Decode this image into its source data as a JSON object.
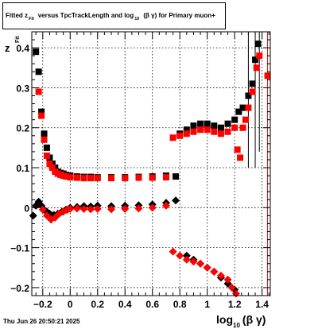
{
  "title": {
    "prefix": "Fitted  z",
    "sub": "Fit",
    "middle": "versus TpcTrackLength and log",
    "sub2": "10",
    "suffix": "(β  γ) for Primary muon+"
  },
  "timestamp": "Thu Jun 26 20:50:21 2025",
  "colors": {
    "series1": "#000000",
    "series2": "#ff0000",
    "grid": "#000000"
  },
  "chart_data": {
    "type": "scatter",
    "x_axis": {
      "label_main": "log",
      "label_sub": "10",
      "label_suffix": "(β γ)",
      "range": [
        -0.28,
        1.46
      ],
      "ticks": [
        -0.2,
        0,
        0.2,
        0.4,
        0.6,
        0.8,
        1,
        1.2,
        1.4
      ],
      "tick_labels": [
        "−0.2",
        "0",
        "0.2",
        "0.4",
        "0.6",
        "0.8",
        "1",
        "1.2",
        "1.4"
      ]
    },
    "y_axis": {
      "label_main": "z",
      "label_sub": "Fit",
      "range": [
        -0.22,
        0.44
      ],
      "ticks": [
        -0.2,
        -0.1,
        0,
        0.1,
        0.2,
        0.3,
        0.4
      ],
      "tick_labels": [
        "−0.2",
        "−0.1",
        "0",
        "0.1",
        "0.2",
        "0.3",
        "0.4"
      ]
    },
    "grid": true,
    "series": [
      {
        "color": "#000000",
        "marker": "square",
        "points": [
          [
            -0.25,
            0.39
          ],
          [
            -0.23,
            0.34
          ],
          [
            -0.21,
            0.24
          ],
          [
            -0.19,
            0.185
          ],
          [
            -0.17,
            0.15
          ],
          [
            -0.15,
            0.125
          ],
          [
            -0.13,
            0.11
          ],
          [
            -0.11,
            0.1
          ],
          [
            -0.09,
            0.09
          ],
          [
            -0.07,
            0.087
          ],
          [
            -0.05,
            0.085
          ],
          [
            -0.03,
            0.082
          ],
          [
            0.0,
            0.08
          ],
          [
            0.05,
            0.078
          ],
          [
            0.1,
            0.077
          ],
          [
            0.15,
            0.077
          ],
          [
            0.2,
            0.076
          ],
          [
            0.3,
            0.076
          ],
          [
            0.4,
            0.076
          ],
          [
            0.5,
            0.077
          ],
          [
            0.6,
            0.078
          ],
          [
            0.7,
            0.08
          ],
          [
            0.77,
            0.078
          ],
          [
            0.8,
            0.185
          ],
          [
            0.85,
            0.195
          ],
          [
            0.9,
            0.205
          ],
          [
            0.95,
            0.21
          ],
          [
            1.0,
            0.21
          ],
          [
            1.05,
            0.205
          ],
          [
            1.1,
            0.2
          ],
          [
            1.15,
            0.21
          ],
          [
            1.2,
            0.22
          ],
          [
            1.23,
            0.24
          ],
          [
            1.26,
            0.25
          ],
          [
            1.3,
            0.28
          ],
          [
            1.33,
            0.31
          ],
          [
            1.35,
            0.37
          ],
          [
            1.37,
            0.41
          ]
        ]
      },
      {
        "color": "#000000",
        "marker": "diamond",
        "points": [
          [
            -0.27,
            -0.02
          ],
          [
            -0.25,
            0.005
          ],
          [
            -0.23,
            0.015
          ],
          [
            -0.21,
            0.005
          ],
          [
            -0.19,
            -0.005
          ],
          [
            -0.17,
            -0.01
          ],
          [
            -0.15,
            -0.015
          ],
          [
            -0.12,
            -0.018
          ],
          [
            -0.09,
            -0.015
          ],
          [
            -0.06,
            -0.01
          ],
          [
            -0.03,
            -0.005
          ],
          [
            0.0,
            0.0
          ],
          [
            0.05,
            0.002
          ],
          [
            0.1,
            0.004
          ],
          [
            0.15,
            0.003
          ],
          [
            0.2,
            0.005
          ],
          [
            0.3,
            0.004
          ],
          [
            0.4,
            0.005
          ],
          [
            0.5,
            0.006
          ],
          [
            0.6,
            0.008
          ],
          [
            0.7,
            0.012
          ],
          [
            0.77,
            0.018
          ],
          [
            0.85,
            -0.12
          ],
          [
            0.9,
            -0.13
          ],
          [
            0.95,
            -0.14
          ],
          [
            1.0,
            -0.15
          ],
          [
            1.05,
            -0.16
          ],
          [
            1.1,
            -0.175
          ],
          [
            1.15,
            -0.19
          ],
          [
            1.2,
            -0.205
          ]
        ]
      },
      {
        "color": "#ff0000",
        "marker": "square",
        "points": [
          [
            -0.23,
            0.29
          ],
          [
            -0.21,
            0.23
          ],
          [
            -0.19,
            0.17
          ],
          [
            -0.17,
            0.13
          ],
          [
            -0.15,
            0.11
          ],
          [
            -0.13,
            0.1
          ],
          [
            -0.11,
            0.09
          ],
          [
            -0.09,
            0.085
          ],
          [
            -0.07,
            0.082
          ],
          [
            -0.05,
            0.08
          ],
          [
            -0.03,
            0.078
          ],
          [
            0.0,
            0.076
          ],
          [
            0.05,
            0.075
          ],
          [
            0.1,
            0.074
          ],
          [
            0.15,
            0.074
          ],
          [
            0.2,
            0.074
          ],
          [
            0.3,
            0.074
          ],
          [
            0.4,
            0.074
          ],
          [
            0.5,
            0.075
          ],
          [
            0.6,
            0.075
          ],
          [
            0.7,
            0.076
          ],
          [
            0.75,
            0.175
          ],
          [
            0.8,
            0.18
          ],
          [
            0.85,
            0.185
          ],
          [
            0.9,
            0.19
          ],
          [
            0.95,
            0.195
          ],
          [
            1.0,
            0.195
          ],
          [
            1.05,
            0.19
          ],
          [
            1.1,
            0.185
          ],
          [
            1.15,
            0.19
          ],
          [
            1.2,
            0.2
          ],
          [
            1.22,
            0.145
          ],
          [
            1.24,
            0.125
          ],
          [
            1.26,
            0.2
          ],
          [
            1.28,
            0.22
          ],
          [
            1.3,
            0.25
          ],
          [
            1.33,
            0.29
          ],
          [
            1.36,
            0.35
          ],
          [
            1.38,
            0.38
          ],
          [
            1.44,
            0.33
          ]
        ]
      },
      {
        "color": "#ff0000",
        "marker": "diamond",
        "points": [
          [
            -0.2,
            -0.005
          ],
          [
            -0.17,
            -0.02
          ],
          [
            -0.14,
            -0.03
          ],
          [
            -0.11,
            -0.025
          ],
          [
            -0.08,
            -0.015
          ],
          [
            -0.05,
            -0.01
          ],
          [
            -0.02,
            -0.005
          ],
          [
            0.0,
            -0.003
          ],
          [
            0.05,
            -0.002
          ],
          [
            0.1,
            -0.003
          ],
          [
            0.15,
            -0.004
          ],
          [
            0.2,
            -0.003
          ],
          [
            0.3,
            -0.004
          ],
          [
            0.4,
            -0.003
          ],
          [
            0.5,
            -0.002
          ],
          [
            0.6,
            0.0
          ],
          [
            0.7,
            0.005
          ],
          [
            0.75,
            -0.11
          ],
          [
            0.8,
            -0.12
          ],
          [
            0.85,
            -0.13
          ],
          [
            0.9,
            -0.135
          ],
          [
            0.95,
            -0.14
          ],
          [
            1.0,
            -0.15
          ],
          [
            1.05,
            -0.16
          ],
          [
            1.1,
            -0.17
          ],
          [
            1.15,
            -0.18
          ],
          [
            1.18,
            -0.2
          ],
          [
            1.21,
            -0.215
          ]
        ]
      }
    ],
    "error_bars": [
      {
        "color": "#000000",
        "x": 1.38,
        "y": 0.41,
        "ylo": 0.14,
        "yhi": 0.44
      },
      {
        "color": "#000000",
        "x": 1.35,
        "y": 0.37,
        "ylo": 0.1,
        "yhi": 0.44
      },
      {
        "color": "#000000",
        "x": 1.3,
        "y": 0.28,
        "ylo": 0.1,
        "yhi": 0.44
      },
      {
        "color": "#ff0000",
        "x": 1.44,
        "y": 0.33,
        "ylo": -0.22,
        "yhi": 0.44
      }
    ]
  }
}
